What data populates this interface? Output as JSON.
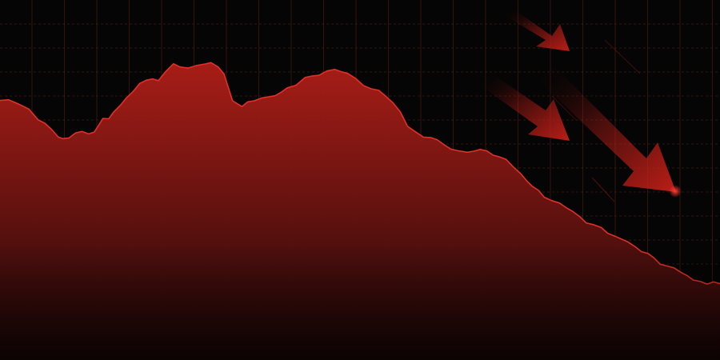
{
  "colors": {
    "background": "#050505",
    "grid": "#5a1f1a",
    "line": "#e03128",
    "fill_top": "#b01e18",
    "fill_bottom": "#1a0707",
    "arrow": "#c41f18",
    "dot": "#ff3a30"
  },
  "chart_data": {
    "type": "area",
    "title": "",
    "xlabel": "",
    "ylabel": "",
    "grid": true,
    "trend": "downward",
    "xlim": [
      0,
      100
    ],
    "ylim": [
      0,
      100
    ],
    "x": [
      0,
      1.2,
      2.6,
      4,
      5.3,
      6.2,
      7.1,
      8.1,
      8.7,
      9.6,
      10.5,
      11.4,
      12.3,
      13.1,
      14.3,
      15.1,
      15.8,
      16.7,
      17.6,
      18.5,
      19.4,
      20.3,
      21.2,
      22,
      23,
      24.1,
      25,
      26.1,
      27.3,
      28.4,
      29.3,
      30.3,
      31.1,
      32.3,
      33.6,
      34.4,
      35.3,
      36.4,
      37.3,
      38.2,
      39,
      39.9,
      41.1,
      42.4,
      43.4,
      44.3,
      45.4,
      46.5,
      47.4,
      48.3,
      49.4,
      50.5,
      51.6,
      52.6,
      53.5,
      54.6,
      55.6,
      56.6,
      57.7,
      58.8,
      59.8,
      60.7,
      61.6,
      62.6,
      63.7,
      64.9,
      65.8,
      66.7,
      67.6,
      68.5,
      69.4,
      70.3,
      71.3,
      72.3,
      73.1,
      73.9,
      74.8,
      75.6,
      76.6,
      77.7,
      78.8,
      79.6,
      80.6,
      81.4,
      82.4,
      83.5,
      84.4,
      85.4,
      86.3,
      87.2,
      88.2,
      89.1,
      90,
      90.8,
      91.7,
      92.7,
      93.6,
      94.6,
      95.4,
      96.3,
      97.3,
      98.2,
      99.1,
      100
    ],
    "y": [
      72.1,
      72.3,
      71.1,
      69.7,
      66.7,
      65.8,
      64.2,
      61.9,
      61.5,
      61.7,
      63.1,
      63.5,
      62.8,
      63.3,
      67.1,
      67,
      68.9,
      70.7,
      72.9,
      74.6,
      76.8,
      77.7,
      78.1,
      77.6,
      80.1,
      82.3,
      81.4,
      81.1,
      81.8,
      82.2,
      82.6,
      81.4,
      79.5,
      72,
      70.4,
      71.7,
      72,
      72.8,
      73.1,
      73.4,
      74.3,
      75.6,
      76.3,
      78.5,
      78.9,
      79.1,
      80.3,
      80.7,
      80.1,
      79.6,
      78.2,
      76.2,
      75.3,
      74.9,
      73.4,
      71.4,
      68.9,
      64.9,
      63.4,
      61.9,
      61.8,
      61.2,
      59.9,
      58.6,
      58.1,
      57.7,
      58,
      58.5,
      58.1,
      56.9,
      56.4,
      55.7,
      53.6,
      51.8,
      49.9,
      48.3,
      47.1,
      45.2,
      44.3,
      43.6,
      42.1,
      41.2,
      39.7,
      38.1,
      37.6,
      36.8,
      35.2,
      34.4,
      33.6,
      32.8,
      31.5,
      30.1,
      29.6,
      28.4,
      26.6,
      26.1,
      25.6,
      24.3,
      23.5,
      22.2,
      21.8,
      21.1,
      21.7,
      21.2
    ]
  }
}
